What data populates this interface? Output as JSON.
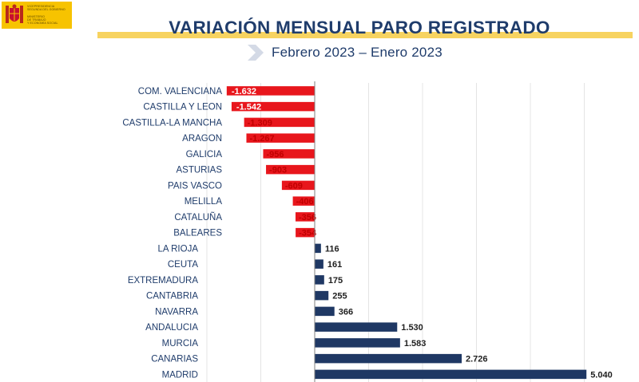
{
  "header": {
    "logo_text": "VICEPRESIDENCIA\nSEGUNDA DEL GOBIERNO\n\nMINISTERIO\nDE TRABAJO\nY ECONOMÍA SOCIAL",
    "title": "VARIACIÓN MENSUAL PARO REGISTRADO",
    "subtitle": "Febrero 2023 – Enero 2023"
  },
  "colors": {
    "negative": "#e8161c",
    "positive": "#1f3864",
    "negative_label": "#c00000",
    "positive_label": "#1f1f1f",
    "category_label": "#1f3c6b",
    "title": "#1f3c6b"
  },
  "chart_data": {
    "type": "bar",
    "orientation": "horizontal",
    "title": "VARIACIÓN MENSUAL PARO REGISTRADO",
    "subtitle": "Febrero 2023 – Enero 2023",
    "categories": [
      "COM. VALENCIANA",
      "CASTILLA Y LEON",
      "CASTILLA-LA MANCHA",
      "ARAGON",
      "GALICIA",
      "ASTURIAS",
      "PAIS VASCO",
      "MELILLA",
      "CATALUÑA",
      "BALEARES",
      "LA RIOJA",
      "CEUTA",
      "EXTREMADURA",
      "CANTABRIA",
      "NAVARRA",
      "ANDALUCIA",
      "MURCIA",
      "CANARIAS",
      "MADRID"
    ],
    "values": [
      -1632,
      -1542,
      -1309,
      -1267,
      -956,
      -903,
      -609,
      -406,
      -356,
      -354,
      116,
      161,
      175,
      255,
      366,
      1530,
      1583,
      2726,
      5040
    ],
    "value_labels": [
      "-1.632",
      "-1.542",
      "-1.309",
      "-1.267",
      "-956",
      "-903",
      "-609",
      "-406",
      "-356",
      "-354",
      "116",
      "161",
      "175",
      "255",
      "366",
      "1.530",
      "1.583",
      "2.726",
      "5.040"
    ],
    "xlim": [
      -3000,
      5500
    ],
    "grid": true,
    "legend": "none"
  }
}
